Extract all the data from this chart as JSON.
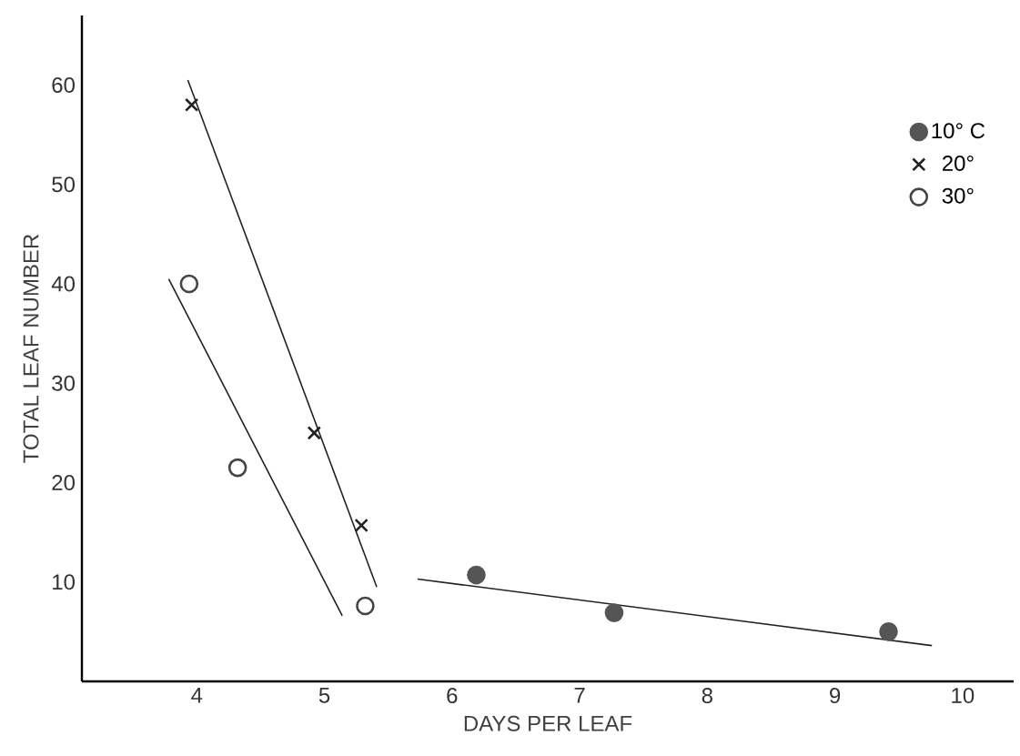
{
  "chart_data": {
    "type": "scatter",
    "xlabel": "DAYS PER LEAF",
    "ylabel": "TOTAL LEAF NUMBER",
    "xlim": [
      3.1,
      10.4
    ],
    "ylim": [
      0,
      67
    ],
    "xticks": [
      4,
      5,
      6,
      7,
      8,
      9,
      10
    ],
    "yticks": [
      10,
      20,
      30,
      40,
      50,
      60
    ],
    "grid": false,
    "legend": "top right",
    "series": [
      {
        "name": "10° C",
        "color": "#555555",
        "marker": "circle",
        "x": [
          6.19,
          7.27,
          9.42
        ],
        "values": [
          10.7,
          6.9,
          5.0
        ]
      },
      {
        "name": "20°",
        "color": "#222222",
        "marker": "cross",
        "x": [
          3.96,
          4.92,
          5.29
        ],
        "values": [
          58.0,
          25.0,
          15.7
        ]
      },
      {
        "name": "30°",
        "color": "#444444",
        "marker": "circle",
        "x": [
          3.94,
          4.32,
          5.32
        ],
        "values": [
          40.0,
          21.5,
          7.6
        ]
      },
      {
        "type": "line",
        "color": "#222222",
        "marker": "none",
        "x": [
          5.73,
          9.76
        ],
        "values": [
          10.3,
          3.6
        ]
      },
      {
        "type": "line",
        "color": "#222222",
        "marker": "none",
        "x": [
          3.93,
          5.41
        ],
        "values": [
          60.5,
          9.5
        ]
      },
      {
        "type": "line",
        "color": "#222222",
        "marker": "none",
        "x": [
          3.78,
          5.14
        ],
        "values": [
          40.5,
          6.6
        ]
      }
    ]
  }
}
